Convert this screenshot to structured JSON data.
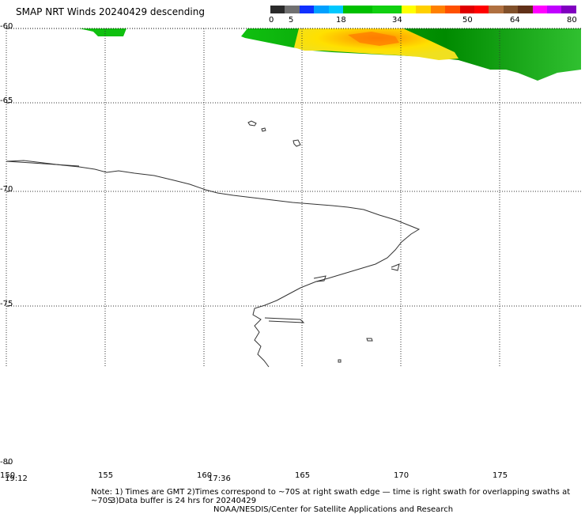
{
  "header": {
    "title": "SMAP NRT Winds  20240429  descending"
  },
  "colorbar": {
    "labels": [
      "0",
      "5",
      "18",
      "34",
      "50",
      "64",
      "80"
    ],
    "segments": [
      {
        "color": "#2a2a2a"
      },
      {
        "color": "#707070"
      },
      {
        "color": "#1030ff"
      },
      {
        "color": "#00a0ff"
      },
      {
        "color": "#00c8ff"
      },
      {
        "color": "#00c000"
      },
      {
        "color": "#10d010"
      },
      {
        "color": "#ffff00"
      },
      {
        "color": "#ffd000"
      },
      {
        "color": "#ff8000"
      },
      {
        "color": "#ff5000"
      },
      {
        "color": "#e00000"
      },
      {
        "color": "#ff0000"
      },
      {
        "color": "#b07040"
      },
      {
        "color": "#80502a"
      },
      {
        "color": "#603018"
      },
      {
        "color": "#ff00ff"
      },
      {
        "color": "#c000ff"
      },
      {
        "color": "#8000c0"
      }
    ]
  },
  "axes": {
    "lat_labels": [
      "-60",
      "-65",
      "-70",
      "-75",
      "-80"
    ],
    "lon_labels": [
      "150",
      "155",
      "160",
      "165",
      "170",
      "175"
    ],
    "time_labels": [
      "19:12",
      "17:36"
    ]
  },
  "footer": {
    "note_line1": "Note: 1) Times are GMT 2)Times correspond to ~70S at right swath edge — time is right swath for overlapping swaths at ~70S",
    "note_line2": "3)Data buffer is 24 hrs for 20240429",
    "credit": "NOAA/NESDIS/Center for Satellite Applications and Research"
  }
}
